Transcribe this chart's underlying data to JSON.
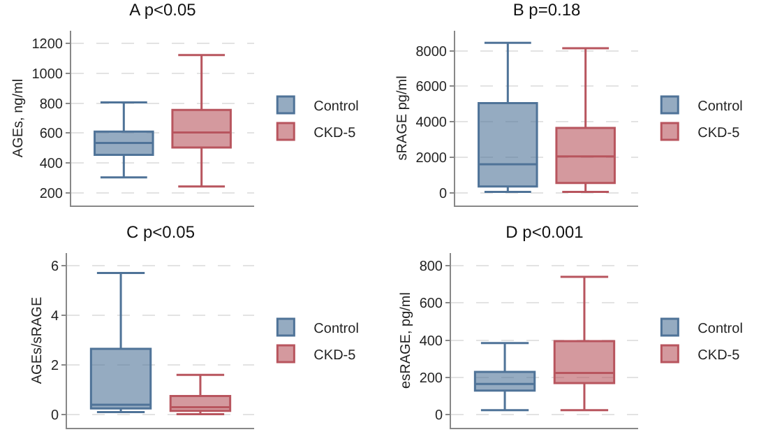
{
  "chart_data": [
    {
      "type": "box",
      "title": "A p<0.05",
      "ylabel": "AGEs, ng/ml",
      "categories": [
        null
      ],
      "ylim": [
        118,
        1282
      ],
      "yticks": [
        200,
        400,
        600,
        800,
        1000,
        1200
      ],
      "grid": "y",
      "legend": "right",
      "tick_labels": "y",
      "series": [
        {
          "name": "Control",
          "color": "#4f7398",
          "boxes": [
            {
              "low": 305,
              "q1": 455,
              "median": 535,
              "q3": 610,
              "high": 805
            }
          ]
        },
        {
          "name": "CKD-5",
          "color": "#b8555e",
          "boxes": [
            {
              "low": 245,
              "q1": 505,
              "median": 605,
              "q3": 755,
              "high": 1120
            }
          ]
        }
      ]
    },
    {
      "type": "box",
      "title": "B p=0.18",
      "ylabel": "sRAGE pg/ml",
      "categories": [
        null
      ],
      "ylim": [
        -720,
        9130
      ],
      "yticks": [
        0,
        2000,
        4000,
        6000,
        8000
      ],
      "grid": "y",
      "legend": "right",
      "tick_labels": "y",
      "series": [
        {
          "name": "Control",
          "color": "#4f7398",
          "boxes": [
            {
              "low": 50,
              "q1": 350,
              "median": 1600,
              "q3": 5050,
              "high": 8450
            }
          ]
        },
        {
          "name": "CKD-5",
          "color": "#b8555e",
          "boxes": [
            {
              "low": 50,
              "q1": 550,
              "median": 2050,
              "q3": 3650,
              "high": 8150
            }
          ]
        }
      ]
    },
    {
      "type": "box",
      "title": "C p<0.05",
      "ylabel": "AGEs/sRAGE",
      "categories": [
        null
      ],
      "ylim": [
        -0.53,
        6.5
      ],
      "yticks": [
        0,
        2,
        4,
        6
      ],
      "grid": "y",
      "legend": "right",
      "tick_labels": "y",
      "series": [
        {
          "name": "Control",
          "color": "#4f7398",
          "boxes": [
            {
              "low": 0.1,
              "q1": 0.25,
              "median": 0.4,
              "q3": 2.65,
              "high": 5.7
            }
          ]
        },
        {
          "name": "CKD-5",
          "color": "#b8555e",
          "boxes": [
            {
              "low": 0.02,
              "q1": 0.15,
              "median": 0.3,
              "q3": 0.75,
              "high": 1.6
            }
          ]
        }
      ]
    },
    {
      "type": "box",
      "title": "D p<0.001",
      "ylabel": "esRAGE, pg/ml",
      "categories": [
        null
      ],
      "ylim": [
        -70,
        868
      ],
      "yticks": [
        0,
        200,
        400,
        600,
        800
      ],
      "grid": "y",
      "legend": "right",
      "tick_labels": "y",
      "series": [
        {
          "name": "Control",
          "color": "#4f7398",
          "boxes": [
            {
              "low": 25,
              "q1": 130,
              "median": 165,
              "q3": 230,
              "high": 385
            }
          ]
        },
        {
          "name": "CKD-5",
          "color": "#b8555e",
          "boxes": [
            {
              "low": 25,
              "q1": 170,
              "median": 225,
              "q3": 395,
              "high": 740
            }
          ]
        }
      ]
    }
  ]
}
